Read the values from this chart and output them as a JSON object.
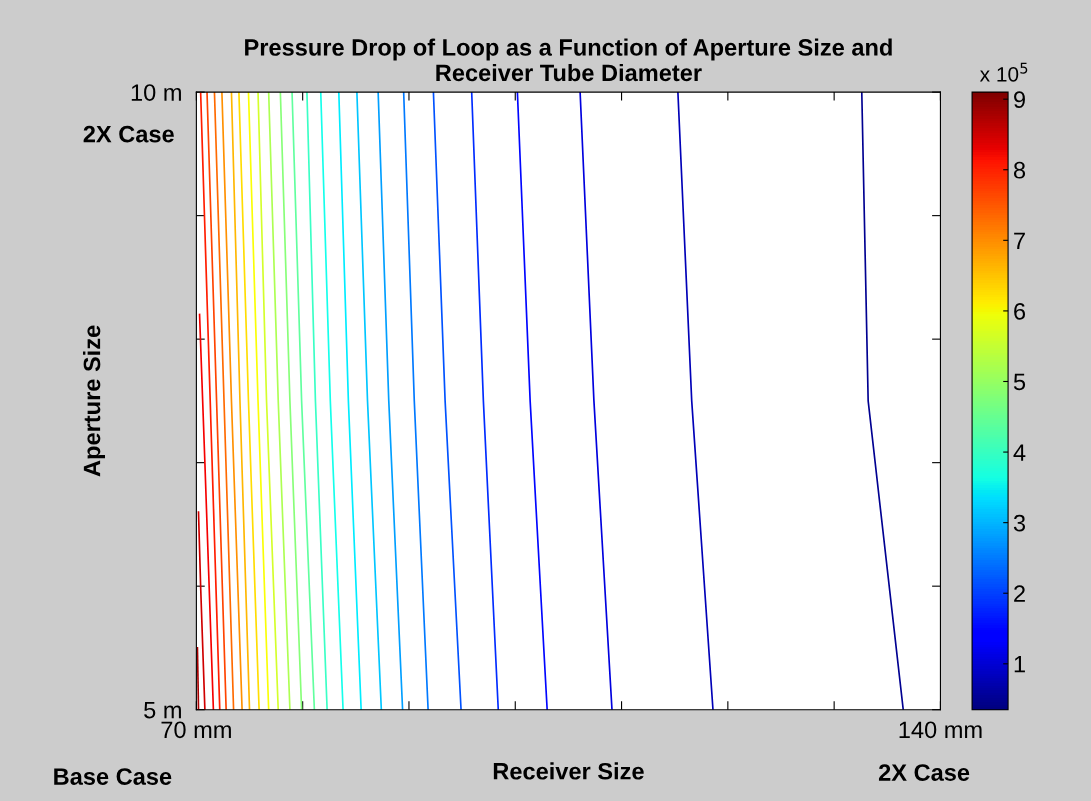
{
  "chart_data": {
    "type": "line",
    "title": "Pressure Drop of Loop as a Function of Aperture Size and\nReceiver Tube Diameter",
    "xlabel": "Receiver Size",
    "ylabel": "Aperture Size",
    "clabel": "x 10$^{5}$",
    "xlim": [
      70,
      140
    ],
    "ylim": [
      5,
      10
    ],
    "xticks": [
      {
        "value": 70,
        "label": "70 mm"
      },
      {
        "value": 80,
        "label": null
      },
      {
        "value": 90,
        "label": null
      },
      {
        "value": 100,
        "label": null
      },
      {
        "value": 110,
        "label": null
      },
      {
        "value": 120,
        "label": null
      },
      {
        "value": 130,
        "label": null
      },
      {
        "value": 140,
        "label": "140 mm"
      }
    ],
    "yticks": [
      {
        "value": 5,
        "label": "5 m"
      },
      {
        "value": 6,
        "label": null
      },
      {
        "value": 7,
        "label": null
      },
      {
        "value": 8,
        "label": null
      },
      {
        "value": 9,
        "label": null
      },
      {
        "value": 10,
        "label": "10 m"
      }
    ],
    "clim": [
      0.35,
      9.1
    ],
    "cticks": [
      1,
      2,
      3,
      4,
      5,
      6,
      7,
      8,
      9
    ],
    "marker": "none",
    "line_style": "solid",
    "grid": false,
    "legend": false,
    "annotations": [
      "2X Case",
      "Base Case",
      "2X Case"
    ],
    "series": [
      {
        "color": "#000091",
        "x": [
          132.6,
          133.2,
          136.5
        ],
        "values": [
          10,
          7.5,
          5
        ]
      },
      {
        "color": "#0000b7",
        "x": [
          115.3,
          116.6,
          118.6
        ],
        "values": [
          10,
          7.5,
          5
        ]
      },
      {
        "color": "#0000de",
        "x": [
          106.1,
          107.4,
          109.1
        ],
        "values": [
          10,
          7.5,
          5
        ]
      },
      {
        "color": "#0005ff",
        "x": [
          100.2,
          101.4,
          103.0
        ],
        "values": [
          10,
          7.5,
          5
        ]
      },
      {
        "color": "#002cff",
        "x": [
          95.9,
          97.0,
          98.4
        ],
        "values": [
          10,
          7.5,
          5
        ]
      },
      {
        "color": "#0052ff",
        "x": [
          92.3,
          93.4,
          94.9
        ],
        "values": [
          10,
          7.5,
          5
        ]
      },
      {
        "color": "#0079ff",
        "x": [
          89.5,
          90.5,
          91.8
        ],
        "values": [
          10,
          7.5,
          5
        ]
      },
      {
        "color": "#009fff",
        "x": [
          87.1,
          88.1,
          89.4
        ],
        "values": [
          10,
          7.5,
          5
        ]
      },
      {
        "color": "#00c6ff",
        "x": [
          85.1,
          86.1,
          87.4
        ],
        "values": [
          10,
          7.5,
          5
        ]
      },
      {
        "color": "#00ecff",
        "x": [
          83.4,
          84.3,
          85.5
        ],
        "values": [
          10,
          7.5,
          5
        ]
      },
      {
        "color": "#14ffeb",
        "x": [
          81.7,
          82.6,
          83.8
        ],
        "values": [
          10,
          7.5,
          5
        ]
      },
      {
        "color": "#3affc5",
        "x": [
          80.4,
          81.2,
          82.3
        ],
        "values": [
          10,
          7.5,
          5
        ]
      },
      {
        "color": "#61ff9e",
        "x": [
          79.0,
          79.9,
          81.1
        ],
        "values": [
          10,
          7.5,
          5
        ]
      },
      {
        "color": "#87ff78",
        "x": [
          77.9,
          78.8,
          79.9
        ],
        "values": [
          10,
          7.5,
          5
        ]
      },
      {
        "color": "#adff52",
        "x": [
          76.8,
          77.7,
          78.8
        ],
        "values": [
          10,
          7.5,
          5
        ]
      },
      {
        "color": "#d4ff2b",
        "x": [
          75.8,
          76.6,
          77.7
        ],
        "values": [
          10,
          7.5,
          5
        ]
      },
      {
        "color": "#faff05",
        "x": [
          74.9,
          75.8,
          76.8
        ],
        "values": [
          10,
          7.5,
          5
        ]
      },
      {
        "color": "#ffdd00",
        "x": [
          74.0,
          74.9,
          75.9
        ],
        "values": [
          10,
          7.5,
          5
        ]
      },
      {
        "color": "#ffb700",
        "x": [
          73.3,
          74.1,
          75.0
        ],
        "values": [
          10,
          7.5,
          5
        ]
      },
      {
        "color": "#ff9000",
        "x": [
          72.4,
          73.3,
          74.3
        ],
        "values": [
          10,
          7.5,
          5
        ]
      },
      {
        "color": "#ff6a00",
        "x": [
          71.7,
          72.6,
          73.5
        ],
        "values": [
          10,
          7.5,
          5
        ]
      },
      {
        "color": "#ff4300",
        "x": [
          71.0,
          71.9,
          72.8
        ],
        "values": [
          10,
          7.5,
          5
        ]
      },
      {
        "color": "#ff1d00",
        "x": [
          70.4,
          71.3,
          72.2
        ],
        "values": [
          10,
          7.5,
          5
        ]
      },
      {
        "color": "#f50000",
        "x": [
          70.3,
          70.8,
          71.6
        ],
        "values": [
          8.2,
          7,
          5
        ]
      },
      {
        "color": "#cf0000",
        "x": [
          70.2,
          70.4,
          70.8
        ],
        "values": [
          6.6,
          6,
          5
        ]
      },
      {
        "color": "#a80000",
        "x": [
          70.1,
          70.2
        ],
        "values": [
          5.5,
          5
        ]
      }
    ]
  }
}
